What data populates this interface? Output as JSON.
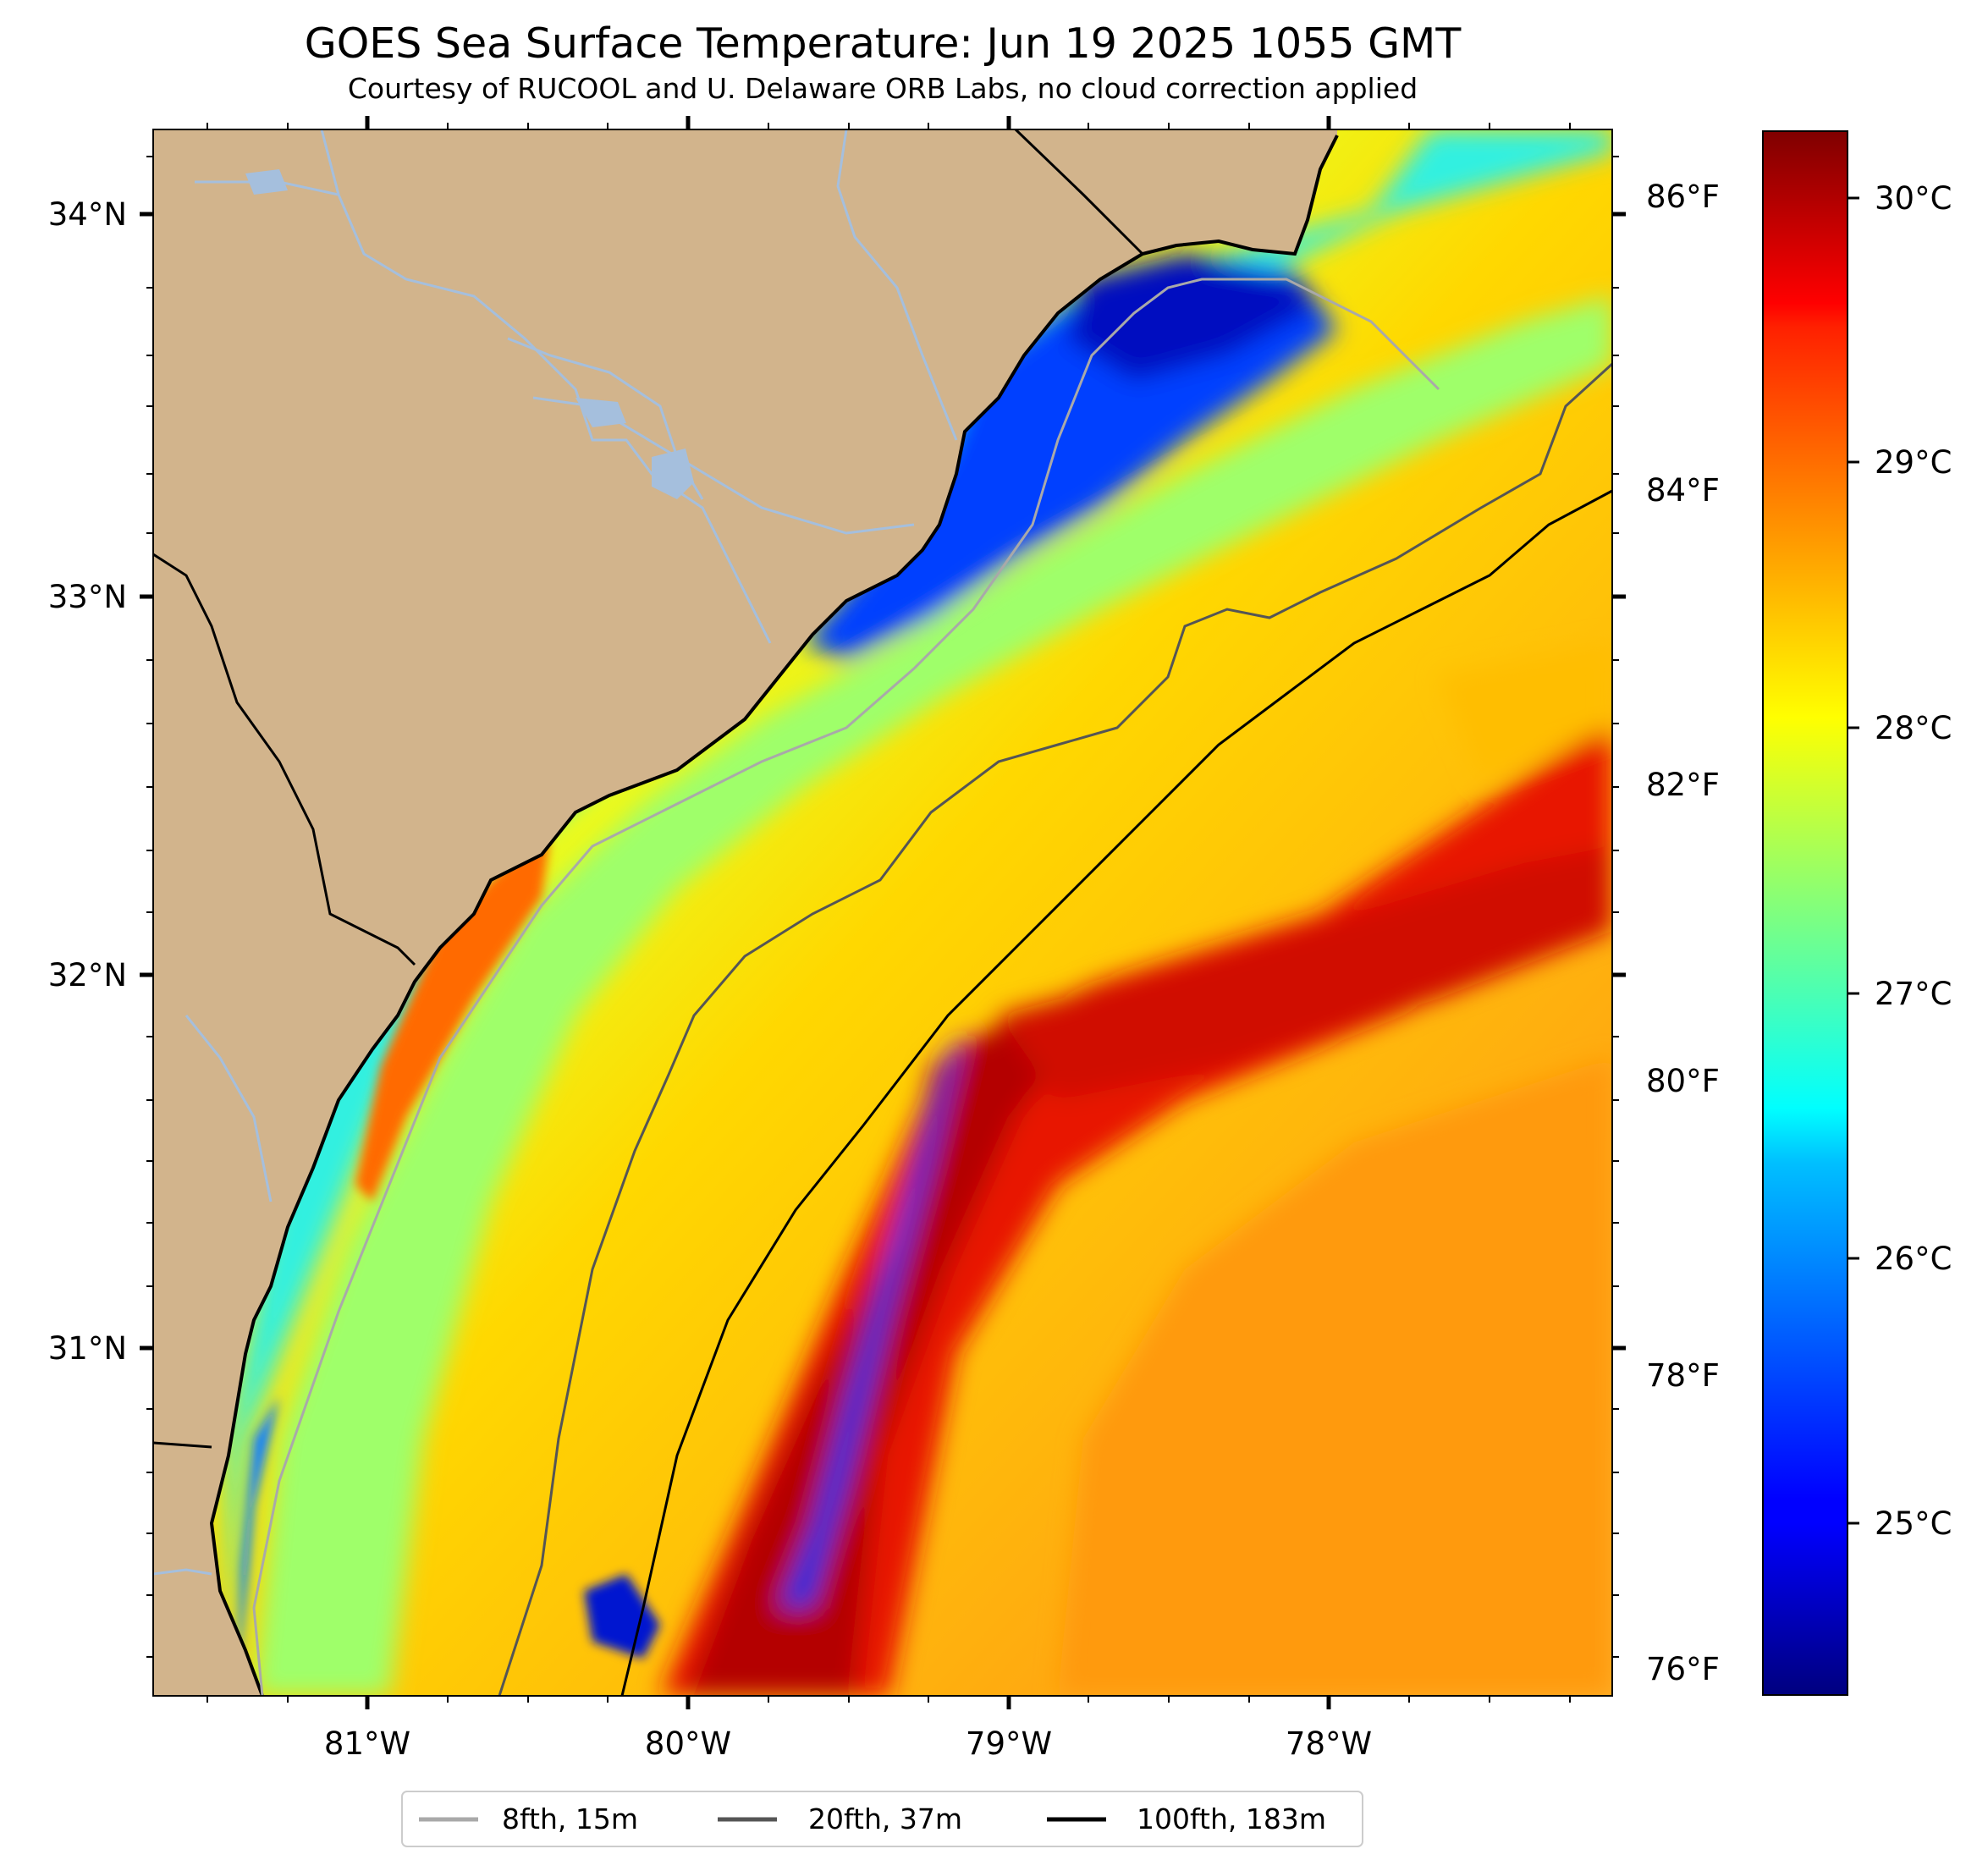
{
  "title": "GOES Sea Surface Temperature: Jun 19 2025 1055 GMT",
  "subtitle": "Courtesy of RUCOOL and U. Delaware ORB Labs, no cloud correction applied",
  "map": {
    "longitude_ticks": [
      "81°W",
      "80°W",
      "79°W",
      "78°W"
    ],
    "latitude_ticks": [
      "34°N",
      "33°N",
      "32°N",
      "31°N"
    ],
    "fahrenheit_ticks": [
      "86°F",
      "84°F",
      "82°F",
      "80°F",
      "78°F",
      "76°F"
    ],
    "land_color": "#D2B48C",
    "coast_color": "#000000",
    "river_color": "#A5BFDD"
  },
  "colorbar": {
    "colormap": "jet",
    "celsius_ticks": [
      "30°C",
      "29°C",
      "28°C",
      "27°C",
      "26°C",
      "25°C"
    ],
    "celsius_min": 24.6,
    "celsius_max": 30.3
  },
  "legend": {
    "entries": [
      {
        "label": "8fth, 15m",
        "color": "#A9A9A9"
      },
      {
        "label": "20fth, 37m",
        "color": "#555555"
      },
      {
        "label": "100fth, 183m",
        "color": "#000000"
      }
    ]
  }
}
